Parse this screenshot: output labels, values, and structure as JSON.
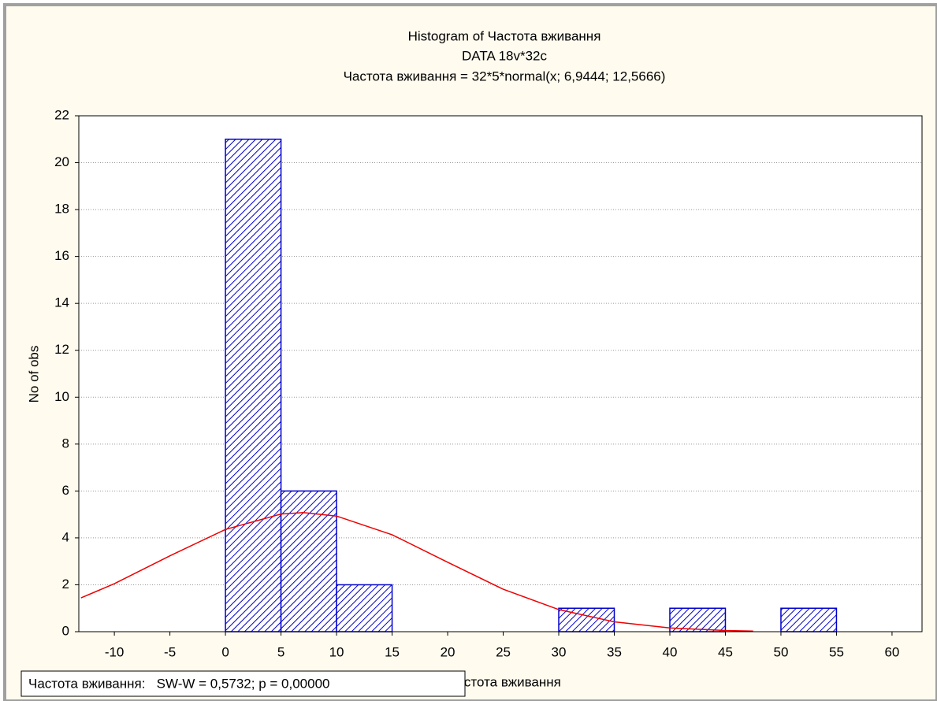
{
  "chart_data": {
    "type": "histogram",
    "title": "Histogram of Частота вживання",
    "subtitle": "DATA 18v*32c",
    "formula": "Частота вживання = 32*5*normal(x; 6,9444; 12,5666)",
    "xlabel": "Частота вживання",
    "ylabel": "No of obs",
    "legend": "Частота вживання:   SW-W = 0,5732; p = 0,00000",
    "bins": [
      0,
      5,
      10,
      15,
      20,
      25,
      30,
      35,
      40,
      45,
      50,
      55
    ],
    "counts": [
      21,
      6,
      2,
      0,
      0,
      0,
      1,
      0,
      1,
      0,
      1
    ],
    "color": "#0000cc",
    "curve": {
      "color": "#ee0000",
      "x": [
        -13,
        -10,
        -5,
        0,
        5,
        7,
        10,
        15,
        20,
        25,
        30,
        35,
        40,
        45,
        47.5
      ],
      "y": [
        1.441,
        2.047,
        3.234,
        4.36,
        5.019,
        5.079,
        4.931,
        4.135,
        2.961,
        1.809,
        0.944,
        0.42,
        0.16,
        0.0518,
        0.0278
      ]
    },
    "xlim": [
      -13.2,
      62.7
    ],
    "ylim": [
      0,
      22
    ],
    "xticks": [
      -10,
      -5,
      0,
      5,
      10,
      15,
      20,
      25,
      30,
      35,
      40,
      45,
      50,
      55,
      60
    ],
    "yticks": [
      0,
      2,
      4,
      6,
      8,
      10,
      12,
      14,
      16,
      18,
      20,
      22
    ],
    "grid": true
  }
}
